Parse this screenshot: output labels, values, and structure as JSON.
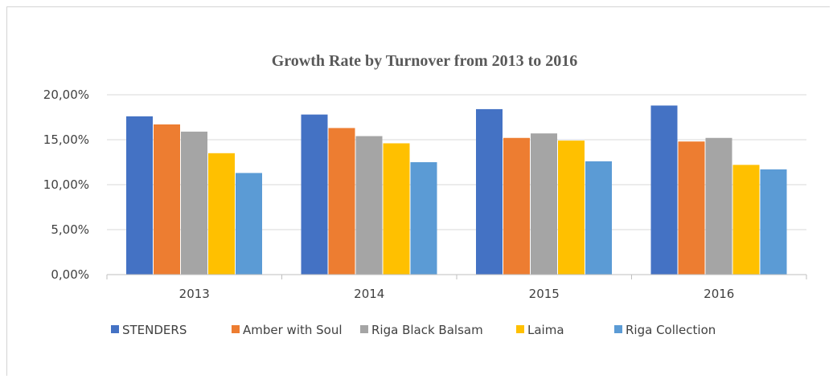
{
  "chart_data": {
    "type": "bar",
    "title": "Growth Rate by Turnover from 2013 to 2016",
    "xlabel": "",
    "ylabel": "",
    "categories": [
      "2013",
      "2014",
      "2015",
      "2016"
    ],
    "ylim": [
      0,
      0.2
    ],
    "yticks": [
      0,
      0.05,
      0.1,
      0.15,
      0.2
    ],
    "ytick_labels": [
      "0,00%",
      "5,00%",
      "10,00%",
      "15,00%",
      "20,00%"
    ],
    "grid": true,
    "legend_position": "bottom",
    "series": [
      {
        "name": "STENDERS",
        "color": "#4472C4",
        "values": [
          0.176,
          0.178,
          0.184,
          0.188
        ]
      },
      {
        "name": "Amber with Soul",
        "color": "#ED7D31",
        "values": [
          0.167,
          0.163,
          0.152,
          0.148
        ]
      },
      {
        "name": "Riga Black Balsam",
        "color": "#A5A5A5",
        "values": [
          0.159,
          0.154,
          0.157,
          0.152
        ]
      },
      {
        "name": "Laima",
        "color": "#FFC000",
        "values": [
          0.135,
          0.146,
          0.149,
          0.122
        ]
      },
      {
        "name": "Riga Collection",
        "color": "#5B9BD5",
        "values": [
          0.113,
          0.125,
          0.126,
          0.117
        ]
      }
    ]
  }
}
